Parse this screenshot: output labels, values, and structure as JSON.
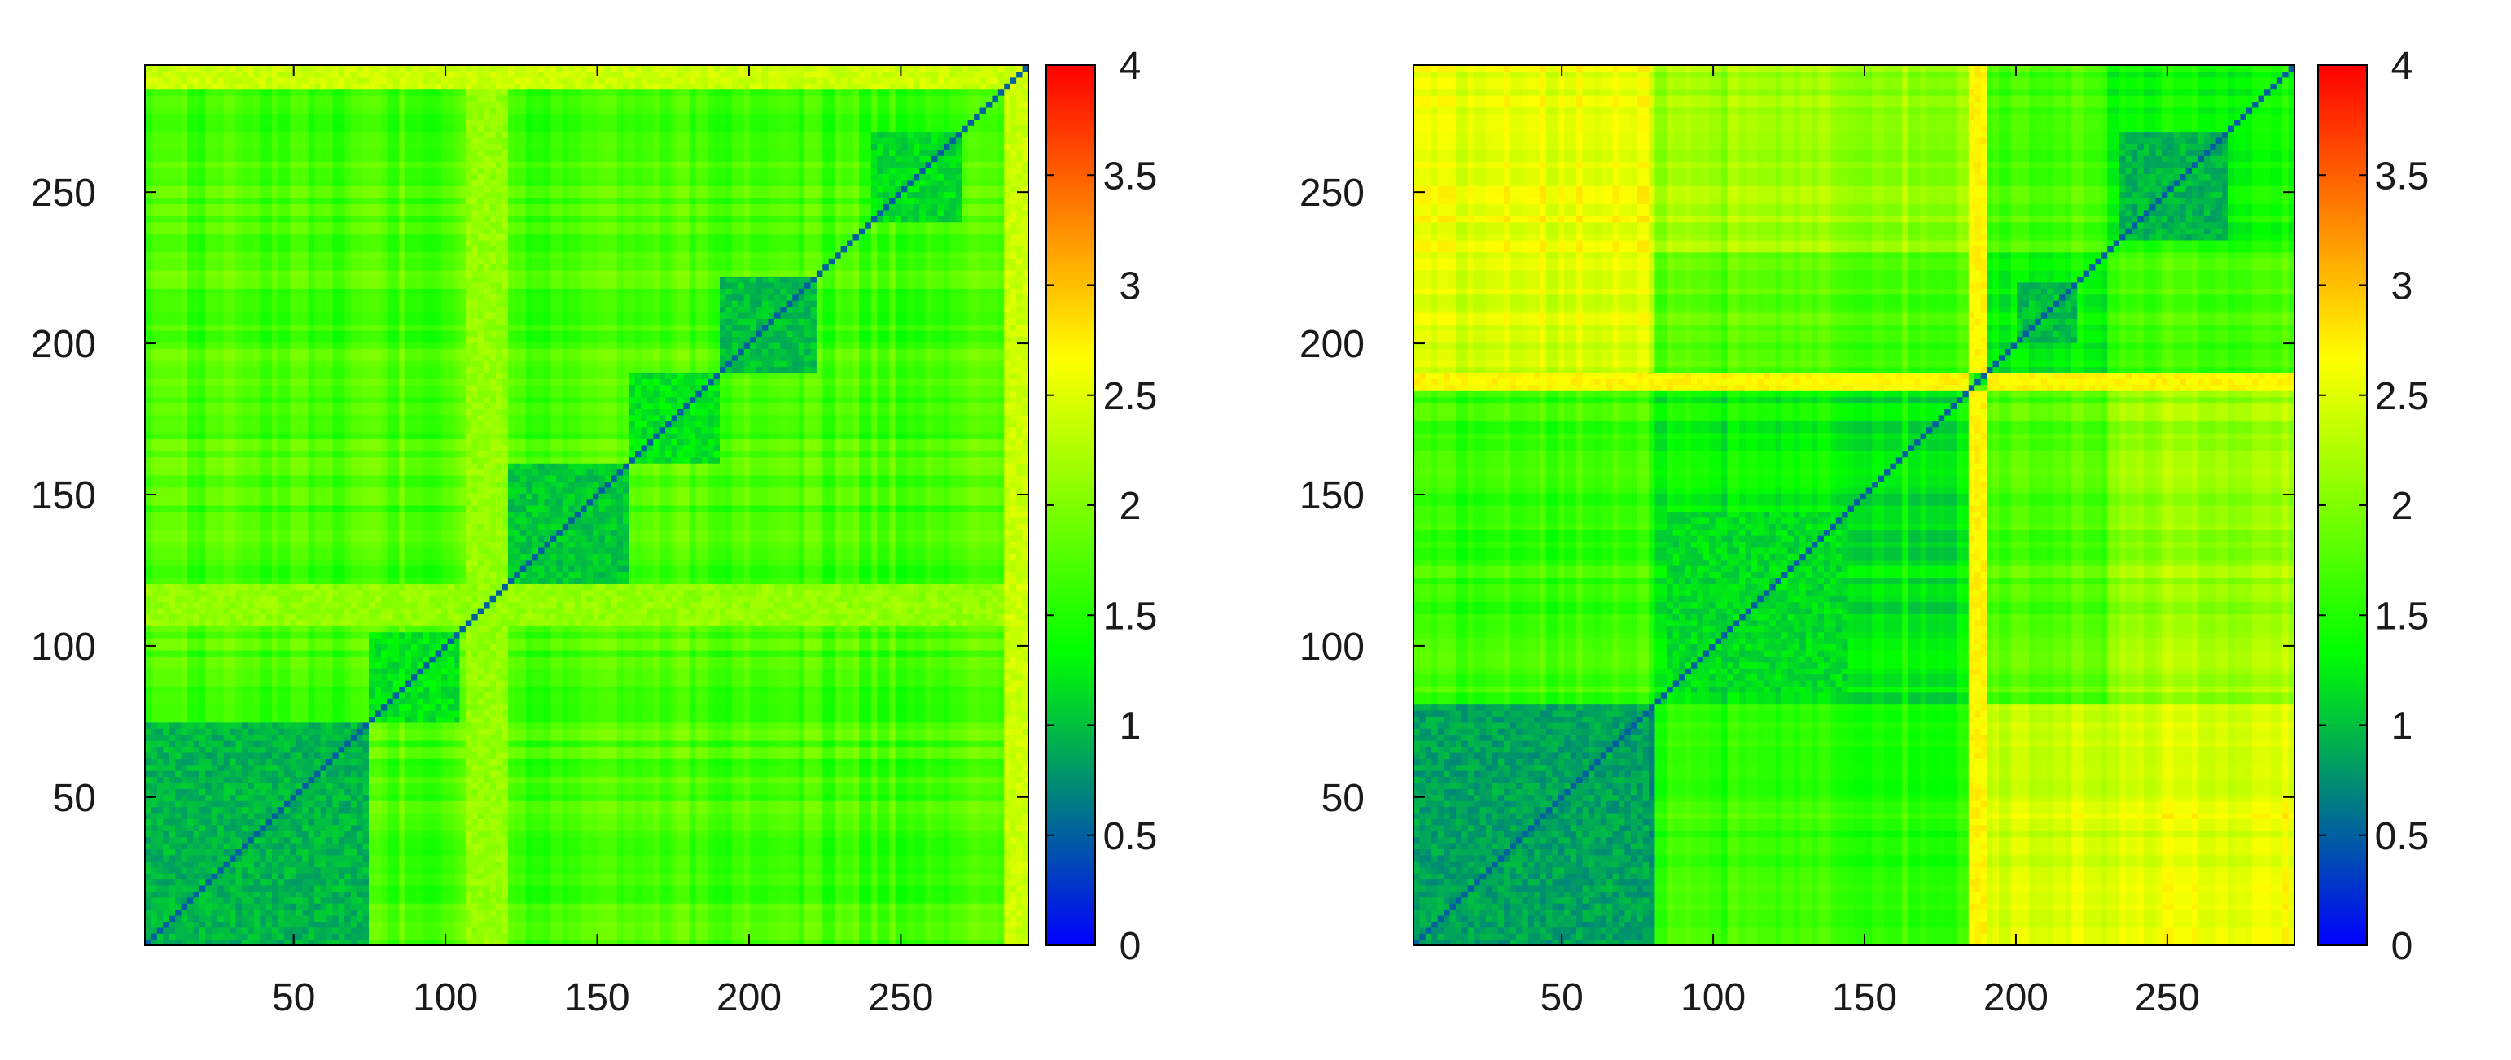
{
  "chart_data": [
    {
      "type": "heatmap",
      "x_range": [
        1,
        292
      ],
      "y_range": [
        1,
        292
      ],
      "x_ticks": [
        50,
        100,
        150,
        200,
        250
      ],
      "y_ticks": [
        50,
        100,
        150,
        200,
        250
      ],
      "colorbar": {
        "range": [
          0,
          4
        ],
        "ticks": [
          0,
          0.5,
          1,
          1.5,
          2,
          2.5,
          3,
          3.5,
          4
        ],
        "tick_labels": [
          "0",
          "0.5",
          "1",
          "1.5",
          "2",
          "2.5",
          "3",
          "3.5",
          "4"
        ],
        "colors": [
          "#0000ff",
          "#00ff00",
          "#ffff00",
          "#ff0000"
        ]
      },
      "diagonal_value": 0.5,
      "base_value": 1.7,
      "blocks": [
        {
          "range": [
            1,
            75
          ],
          "value": 0.95
        },
        {
          "range": [
            75,
            105
          ],
          "value": 1.2
        },
        {
          "range": [
            120,
            160
          ],
          "value": 1.05
        },
        {
          "range": [
            160,
            190
          ],
          "value": 1.2
        },
        {
          "range": [
            190,
            222
          ],
          "value": 1.0
        },
        {
          "range": [
            240,
            270
          ],
          "value": 1.15
        }
      ],
      "bright_bands": [
        {
          "range": [
            107,
            121
          ],
          "value": 2.1
        },
        {
          "range": [
            285,
            292
          ],
          "value": 2.4
        }
      ]
    },
    {
      "type": "heatmap",
      "x_range": [
        1,
        292
      ],
      "y_range": [
        1,
        292
      ],
      "x_ticks": [
        50,
        100,
        150,
        200,
        250
      ],
      "y_ticks": [
        50,
        100,
        150,
        200,
        250
      ],
      "colorbar": {
        "range": [
          0,
          4
        ],
        "ticks": [
          0,
          0.5,
          1,
          1.5,
          2,
          2.5,
          3,
          3.5,
          4
        ],
        "tick_labels": [
          "0",
          "0.5",
          "1",
          "1.5",
          "2",
          "2.5",
          "3",
          "3.5",
          "4"
        ],
        "colors": [
          "#0000ff",
          "#00ff00",
          "#ffff00",
          "#ff0000"
        ]
      },
      "diagonal_value": 0.5,
      "groups": [
        {
          "range": [
            1,
            80
          ],
          "self": 0.9
        },
        {
          "range": [
            80,
            186
          ],
          "self": 1.3
        },
        {
          "range": [
            186,
            230
          ],
          "self": 1.3
        },
        {
          "range": [
            230,
            292
          ],
          "self": 1.4
        }
      ],
      "sub_blocks": [
        {
          "range": [
            1,
            78
          ],
          "value": 0.85
        },
        {
          "range": [
            85,
            145
          ],
          "value": 1.15
        },
        {
          "range": [
            235,
            270
          ],
          "value": 0.95
        },
        {
          "range": [
            200,
            220
          ],
          "value": 1.0
        }
      ],
      "cross_values": [
        {
          "groups": [
            0,
            1
          ],
          "value": 1.6
        },
        {
          "groups": [
            0,
            2
          ],
          "value": 2.45
        },
        {
          "groups": [
            0,
            3
          ],
          "value": 2.55
        },
        {
          "groups": [
            1,
            2
          ],
          "value": 1.75
        },
        {
          "groups": [
            1,
            3
          ],
          "value": 2.15
        },
        {
          "groups": [
            2,
            3
          ],
          "value": 1.7
        }
      ],
      "bright_bands": [
        {
          "range": [
            185,
            190
          ],
          "value": 2.7
        }
      ]
    }
  ]
}
